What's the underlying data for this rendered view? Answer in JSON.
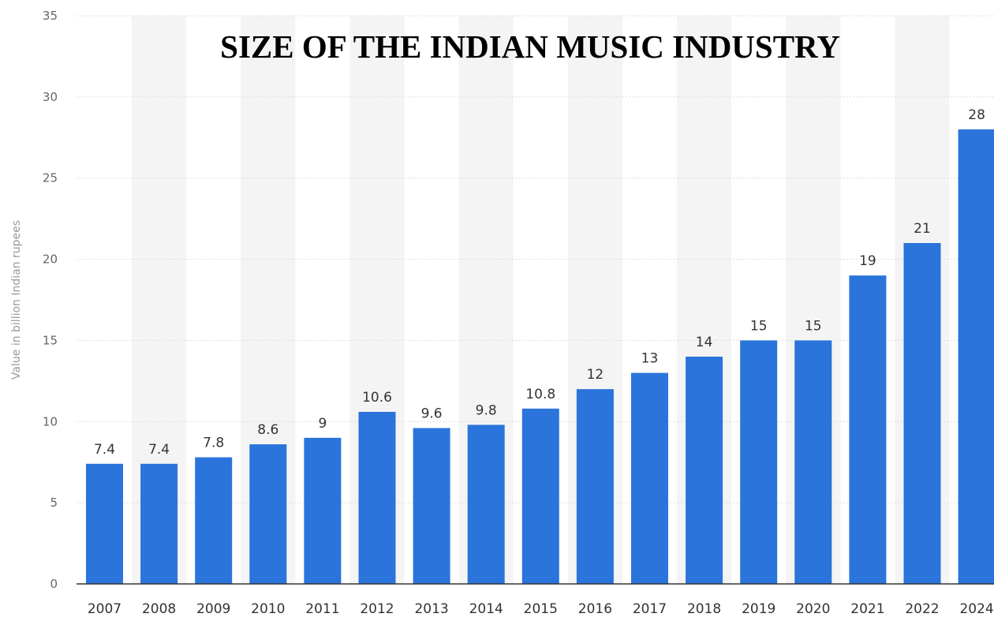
{
  "chart_data": {
    "type": "bar",
    "title": "SIZE OF THE INDIAN MUSIC INDUSTRY",
    "xlabel": "",
    "ylabel": "Value in billion Indian rupees",
    "categories": [
      "2007",
      "2008",
      "2009",
      "2010",
      "2011",
      "2012",
      "2013",
      "2014",
      "2015",
      "2016",
      "2017",
      "2018",
      "2019",
      "2020",
      "2021",
      "2022",
      "2024"
    ],
    "values": [
      7.4,
      7.4,
      7.8,
      8.6,
      9,
      10.6,
      9.6,
      9.8,
      10.8,
      12,
      13,
      14,
      15,
      15,
      19,
      21,
      28
    ],
    "data_labels": [
      "7.4",
      "7.4",
      "7.8",
      "8.6",
      "9",
      "10.6",
      "9.6",
      "9.8",
      "10.8",
      "12",
      "13",
      "14",
      "15",
      "15",
      "19",
      "21",
      "28"
    ],
    "ylim": [
      0,
      35
    ],
    "y_ticks": [
      0,
      5,
      10,
      15,
      20,
      25,
      30,
      35
    ],
    "grid": true,
    "legend": "none",
    "colors": {
      "bar": "#2a74db",
      "grid": "#dddddd",
      "band": "#f4f4f4",
      "axis": "#333333"
    }
  }
}
